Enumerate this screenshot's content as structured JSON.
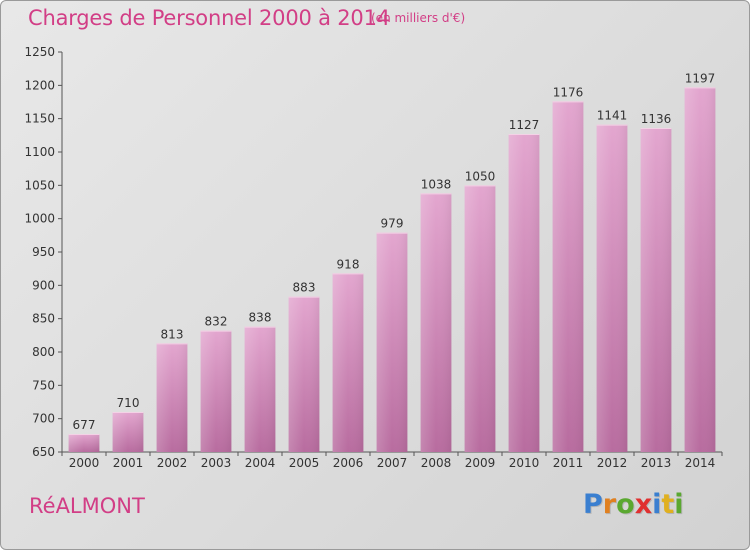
{
  "title": "Charges de Personnel 2000 à 2014",
  "unit_note": "(en milliers d'€)",
  "commune": "RéALMONT",
  "logo": {
    "letters": [
      {
        "ch": "P",
        "color": "#3a7fd0"
      },
      {
        "ch": "r",
        "color": "#e08020"
      },
      {
        "ch": "o",
        "color": "#5aa830"
      },
      {
        "ch": "x",
        "color": "#e03030"
      },
      {
        "ch": "i",
        "color": "#3a7fd0"
      },
      {
        "ch": "t",
        "color": "#e0b020"
      },
      {
        "ch": "i",
        "color": "#5aa830"
      }
    ]
  },
  "chart_data": {
    "type": "bar",
    "title": "Charges de Personnel 2000 à 2014",
    "subtitle": "(en milliers d'€)",
    "categories": [
      "2000",
      "2001",
      "2002",
      "2003",
      "2004",
      "2005",
      "2006",
      "2007",
      "2008",
      "2009",
      "2010",
      "2011",
      "2012",
      "2013",
      "2014"
    ],
    "values": [
      677,
      710,
      813,
      832,
      838,
      883,
      918,
      979,
      1038,
      1050,
      1127,
      1176,
      1141,
      1136,
      1197
    ],
    "ylim": [
      650,
      1250
    ],
    "yticks": [
      650,
      700,
      750,
      800,
      850,
      900,
      950,
      1000,
      1050,
      1100,
      1150,
      1200,
      1250
    ],
    "grid": false,
    "legend": "none",
    "bar_color": "#d48ab8",
    "bar_color_dark": "#b4669a"
  }
}
